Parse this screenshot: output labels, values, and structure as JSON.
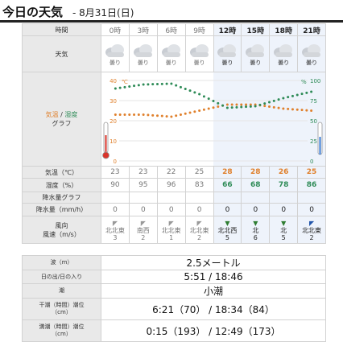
{
  "header": {
    "title": "今日の天気",
    "date": "- 8月31日(日)"
  },
  "labels": {
    "time": "時間",
    "weather": "天気",
    "graph_temp": "気温",
    "graph_sep": " / ",
    "graph_hum": "湿度",
    "graph_word": "グラフ",
    "temp_row": "気温（℃）",
    "hum_row": "湿度（%）",
    "precip_graph": "降水量グラフ",
    "precip": "降水量（mm/h）",
    "wind_line1": "風向",
    "wind_line2": "風速（m/s）"
  },
  "hours": [
    "0時",
    "3時",
    "6時",
    "9時",
    "12時",
    "15時",
    "18時",
    "21時"
  ],
  "weather": [
    "曇り",
    "曇り",
    "曇り",
    "曇り",
    "曇り",
    "曇り",
    "曇り",
    "曇り"
  ],
  "temps": [
    "23",
    "23",
    "22",
    "25",
    "28",
    "28",
    "26",
    "25"
  ],
  "humidity": [
    "90",
    "95",
    "96",
    "83",
    "66",
    "68",
    "78",
    "86"
  ],
  "precip": [
    "0",
    "0",
    "0",
    "0",
    "0",
    "0",
    "0",
    "0"
  ],
  "wind_dir": [
    "北北東",
    "南西",
    "北北東",
    "北北東",
    "北北西",
    "北",
    "北",
    "北北東"
  ],
  "wind_speed": [
    "3",
    "2",
    "1",
    "2",
    "5",
    "6",
    "5",
    "2"
  ],
  "wind_arrows": [
    "◤",
    "◤",
    "◤",
    "◤",
    "▼",
    "▼",
    "▼",
    "◤"
  ],
  "axis_temp": {
    "unit": "℃",
    "ticks": [
      "40",
      "30",
      "20",
      "10",
      "0"
    ]
  },
  "axis_hum": {
    "unit": "%",
    "ticks": [
      "100",
      "75",
      "50",
      "25",
      "0"
    ]
  },
  "chart_data": {
    "type": "line",
    "x": [
      "0時",
      "3時",
      "6時",
      "9時",
      "12時",
      "15時",
      "18時",
      "21時"
    ],
    "series": [
      {
        "name": "気温",
        "axis": "left",
        "color": "#e0802c",
        "ylim": [
          0,
          40
        ],
        "values": [
          23,
          23,
          22,
          25,
          28,
          28,
          26,
          25
        ]
      },
      {
        "name": "湿度",
        "axis": "right",
        "color": "#2e8b57",
        "ylim": [
          0,
          100
        ],
        "values": [
          90,
          95,
          96,
          83,
          66,
          68,
          78,
          86
        ]
      }
    ]
  },
  "sea": {
    "wave_label": "波（m）",
    "wave": "2.5メートル",
    "sun_label": "日の出/日の入り",
    "sun": "5:51 / 18:46",
    "tide_label": "潮",
    "tide": "小潮",
    "low_label1": "干潮（時間）潮位",
    "low_label2": "（cm）",
    "low": "6:21（70） / 18:34（84）",
    "high_label1": "満潮（時間）潮位",
    "high_label2": "（cm）",
    "high": "0:15（193） / 12:49（173）"
  }
}
